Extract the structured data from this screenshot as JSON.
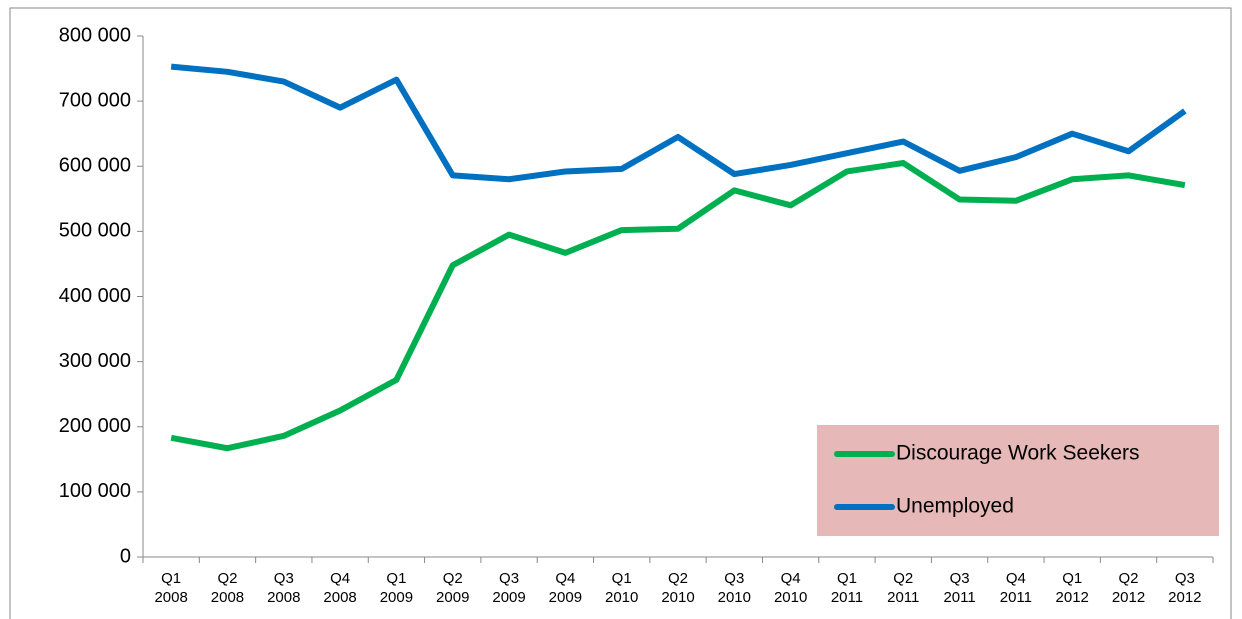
{
  "chart_data": {
    "type": "line",
    "categories": [
      "Q1 2008",
      "Q2 2008",
      "Q3 2008",
      "Q4 2008",
      "Q1 2009",
      "Q2 2009",
      "Q3 2009",
      "Q4 2009",
      "Q1 2010",
      "Q2 2010",
      "Q3 2010",
      "Q4 2010",
      "Q1 2011",
      "Q2 2011",
      "Q3 2011",
      "Q4 2011",
      "Q1 2012",
      "Q2 2012",
      "Q3 2012"
    ],
    "series": [
      {
        "name": "Discourage Work Seekers",
        "color": "#00b050",
        "values": [
          183000,
          167000,
          186000,
          225000,
          272000,
          448000,
          495000,
          467000,
          502000,
          504000,
          563000,
          540000,
          592000,
          605000,
          549000,
          547000,
          580000,
          586000,
          571000
        ]
      },
      {
        "name": "Unemployed",
        "color": "#0070c0",
        "values": [
          753000,
          745000,
          730000,
          690000,
          733000,
          586000,
          580000,
          592000,
          596000,
          645000,
          588000,
          602000,
          620000,
          638000,
          593000,
          614000,
          650000,
          623000,
          685000
        ]
      }
    ],
    "ylim": [
      0,
      800000
    ],
    "yticks": [
      0,
      {
        "value": 100000,
        "label": "100 000"
      },
      {
        "value": 200000,
        "label": "200 000"
      },
      {
        "value": 300000,
        "label": "300 000"
      },
      {
        "value": 400000,
        "label": "400 000"
      },
      {
        "value": 500000,
        "label": "500 000"
      },
      {
        "value": 600000,
        "label": "600 000"
      },
      {
        "value": 700000,
        "label": "700 000"
      },
      {
        "value": 800000,
        "label": "800 000"
      }
    ],
    "legend_position": "lower right",
    "legend_background": "#e6b8b7"
  }
}
